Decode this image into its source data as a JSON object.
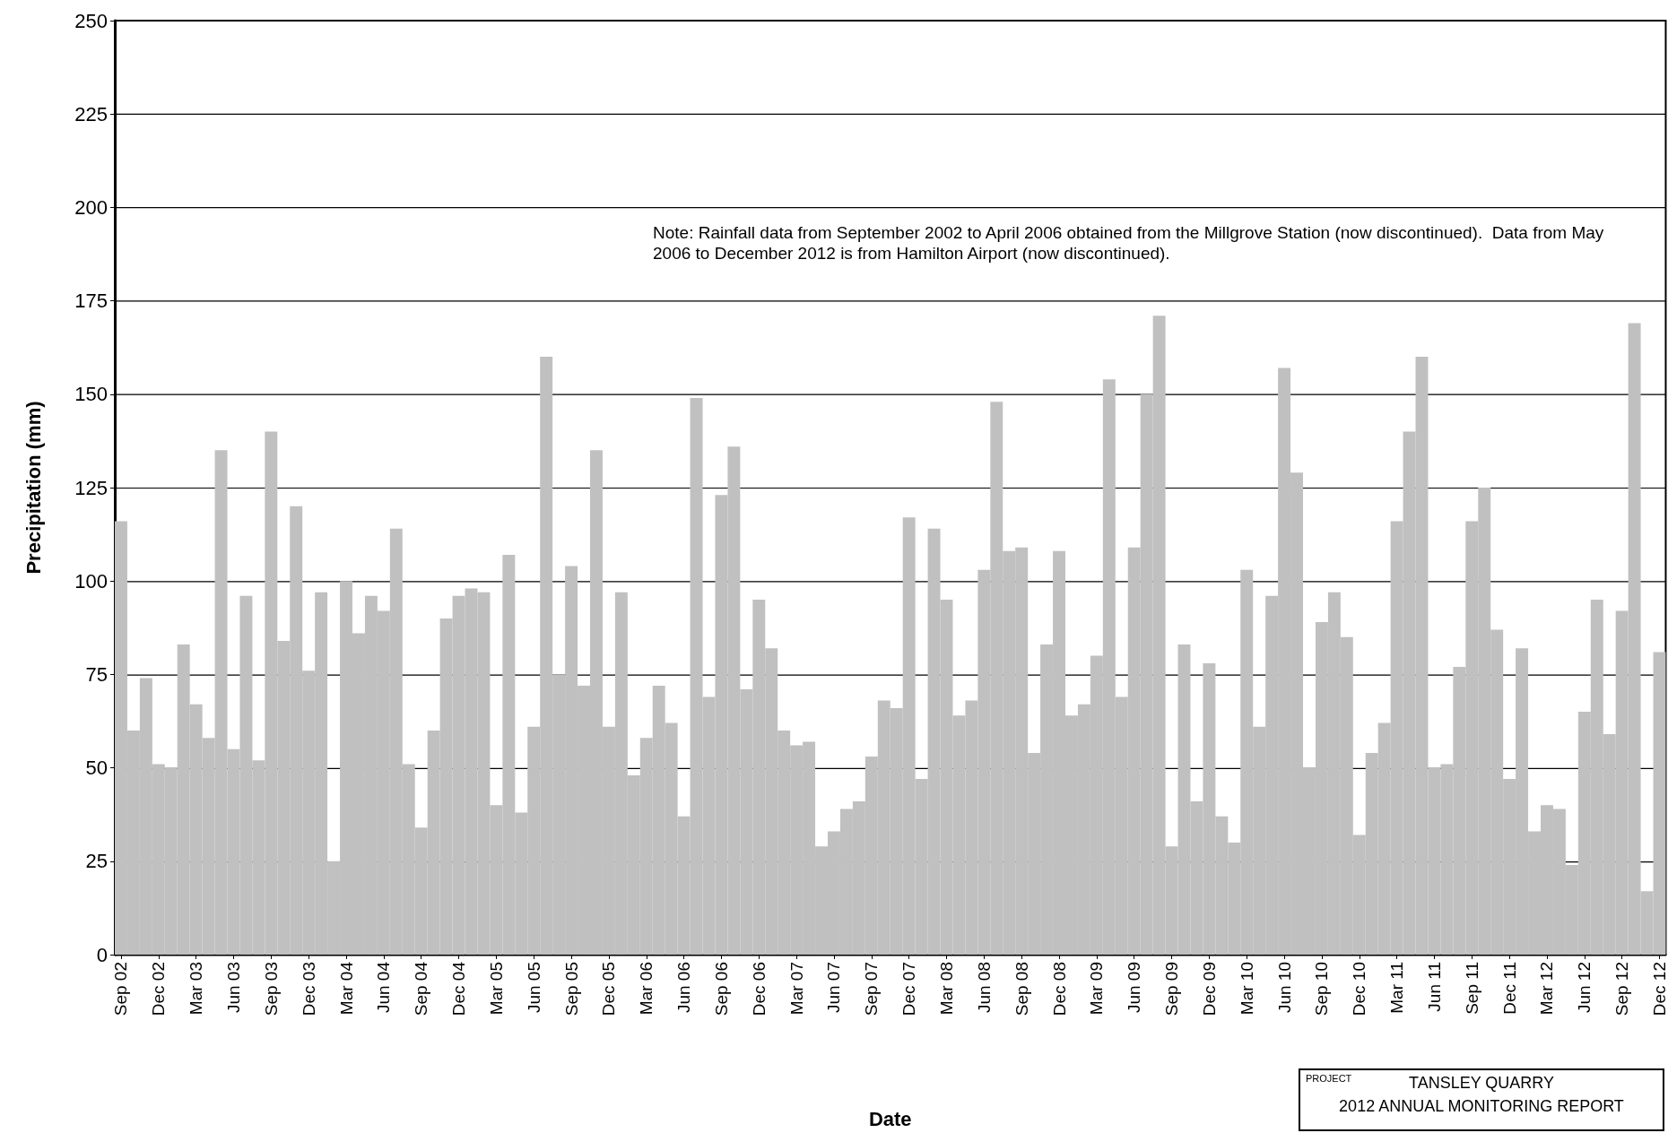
{
  "chart_data": {
    "type": "bar",
    "xlabel": "Date",
    "ylabel": "Precipitation (mm)",
    "categories": [
      "Sep 02",
      null,
      null,
      "Dec 02",
      null,
      null,
      "Mar 03",
      null,
      null,
      "Jun 03",
      null,
      null,
      "Sep 03",
      null,
      null,
      "Dec 03",
      null,
      null,
      "Mar 04",
      null,
      null,
      "Jun 04",
      null,
      null,
      "Sep 04",
      null,
      null,
      "Dec 04",
      null,
      null,
      "Mar 05",
      null,
      null,
      "Jun 05",
      null,
      null,
      "Sep 05",
      null,
      null,
      "Dec 05",
      null,
      null,
      "Mar 06",
      null,
      null,
      "Jun 06",
      null,
      null,
      "Sep 06",
      null,
      null,
      "Dec 06",
      null,
      null,
      "Mar 07",
      null,
      null,
      "Jun 07",
      null,
      null,
      "Sep 07",
      null,
      null,
      "Dec 07",
      null,
      null,
      "Mar 08",
      null,
      null,
      "Jun 08",
      null,
      null,
      "Sep 08",
      null,
      null,
      "Dec 08",
      null,
      null,
      "Mar 09",
      null,
      null,
      "Jun 09",
      null,
      null,
      "Sep 09",
      null,
      null,
      "Dec 09",
      null,
      null,
      "Mar 10",
      null,
      null,
      "Jun 10",
      null,
      null,
      "Sep 10",
      null,
      null,
      "Dec 10",
      null,
      null,
      "Mar 11",
      null,
      null,
      "Jun 11",
      null,
      null,
      "Sep 11",
      null,
      null,
      "Dec 11",
      null,
      null,
      "Mar 12",
      null,
      null,
      "Jun 12",
      null,
      null,
      "Sep 12",
      null,
      null,
      "Dec 12"
    ],
    "values": [
      116,
      60,
      74,
      51,
      50,
      83,
      67,
      58,
      135,
      55,
      96,
      52,
      140,
      84,
      120,
      76,
      97,
      25,
      100,
      86,
      96,
      92,
      114,
      51,
      34,
      60,
      90,
      96,
      98,
      97,
      40,
      107,
      38,
      61,
      160,
      75,
      104,
      72,
      135,
      61,
      97,
      48,
      58,
      72,
      62,
      37,
      149,
      69,
      123,
      136,
      71,
      95,
      82,
      60,
      56,
      57,
      29,
      33,
      39,
      41,
      53,
      68,
      66,
      117,
      47,
      114,
      95,
      64,
      68,
      103,
      148,
      108,
      109,
      54,
      83,
      108,
      64,
      67,
      80,
      154,
      69,
      109,
      150,
      171,
      29,
      83,
      41,
      78,
      37,
      30,
      103,
      61,
      96,
      157,
      129,
      50,
      89,
      97,
      85,
      32,
      54,
      62,
      116,
      140,
      160,
      50,
      51,
      77,
      116,
      125,
      87,
      47,
      82,
      33,
      40,
      39,
      24,
      65,
      95,
      59,
      92,
      169,
      17,
      81
    ],
    "color": "#c0c0c0",
    "ylim": [
      0,
      250
    ],
    "yticks": [
      0,
      25,
      50,
      75,
      100,
      125,
      150,
      175,
      200,
      225,
      250
    ],
    "grid": "y",
    "annotations": [
      "Note: Rainfall data from September 2002 to April 2006 obtained from the Millgrove Station (now discontinued).  Data from May 2006 to December 2012 is from Hamilton Airport (now discontinued).",
      "PROJECT",
      "TANSLEY QUARRY",
      "2012 ANNUAL MONITORING REPORT"
    ]
  }
}
